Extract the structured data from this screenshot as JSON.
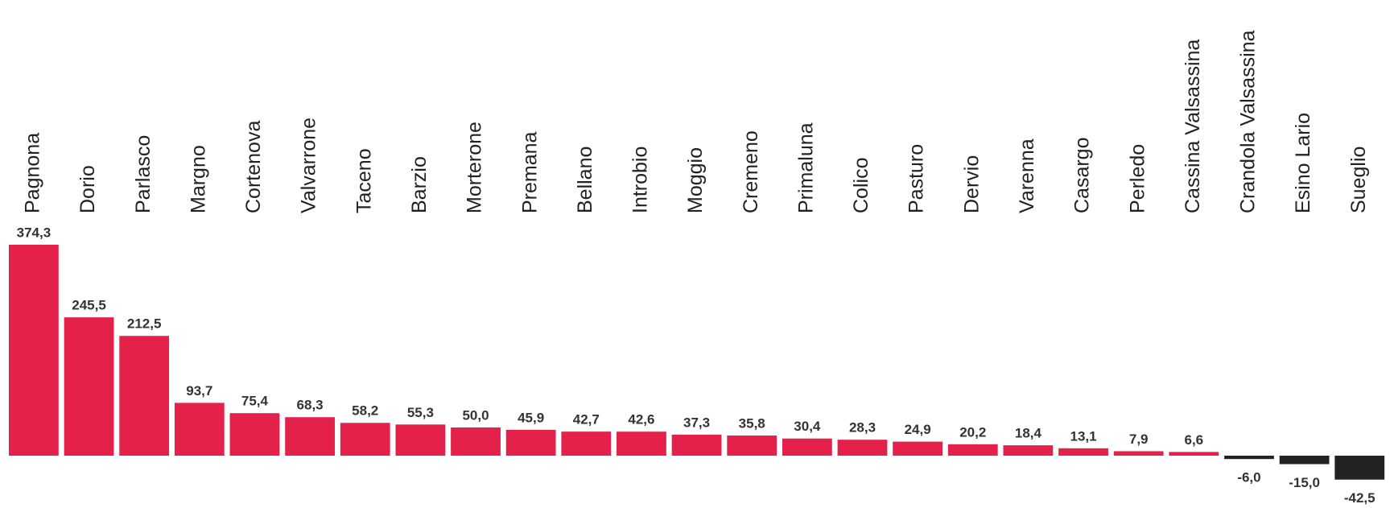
{
  "chart_data": {
    "type": "bar",
    "categories": [
      "Pagnona",
      "Dorio",
      "Parlasco",
      "Margno",
      "Cortenova",
      "Valvarrone",
      "Taceno",
      "Barzio",
      "Morterone",
      "Premana",
      "Bellano",
      "Introbio",
      "Moggio",
      "Cremeno",
      "Primaluna",
      "Colico",
      "Pasturo",
      "Dervio",
      "Varenna",
      "Casargo",
      "Perledo",
      "Cassina Valsassina",
      "Crandola Valsassina",
      "Esino Lario",
      "Sueglio"
    ],
    "values": [
      374.3,
      245.5,
      212.5,
      93.7,
      75.4,
      68.3,
      58.2,
      55.3,
      50.0,
      45.9,
      42.7,
      42.6,
      37.3,
      35.8,
      30.4,
      28.3,
      24.9,
      20.2,
      18.4,
      13.1,
      7.9,
      6.6,
      -6.0,
      -15.0,
      -42.5
    ],
    "value_labels": [
      "374,3",
      "245,5",
      "212,5",
      "93,7",
      "75,4",
      "68,3",
      "58,2",
      "55,3",
      "50,0",
      "45,9",
      "42,7",
      "42,6",
      "37,3",
      "35,8",
      "30,4",
      "28,3",
      "24,9",
      "20,2",
      "18,4",
      "13,1",
      "7,9",
      "6,6",
      "-6,0",
      "-15,0",
      "-42,5"
    ],
    "color": "#e3214a",
    "negative_color": "#222222"
  }
}
